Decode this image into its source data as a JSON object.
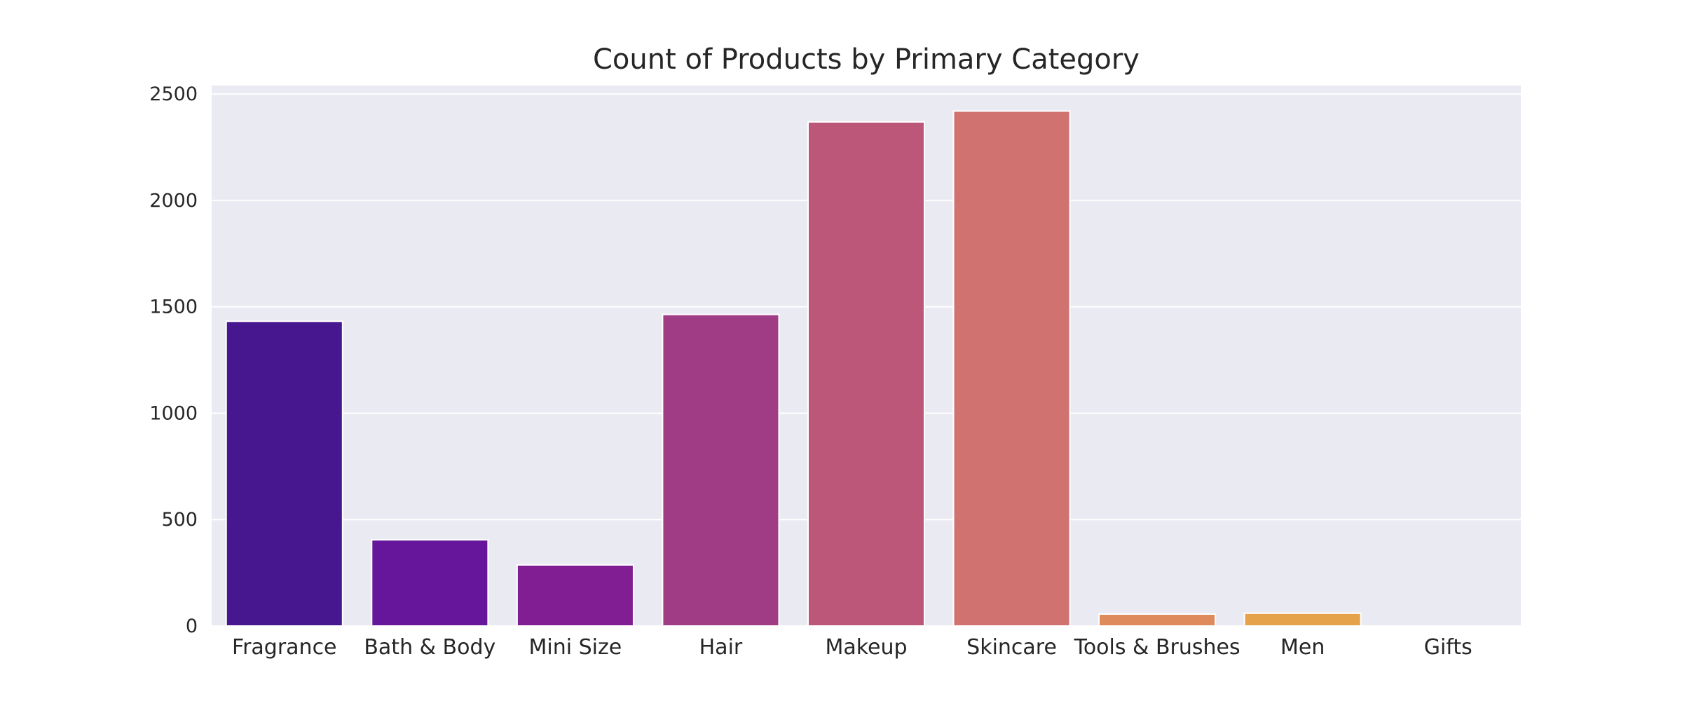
{
  "chart_data": {
    "type": "bar",
    "title": "Count of Products by Primary Category",
    "xlabel": "",
    "ylabel": "",
    "categories": [
      "Fragrance",
      "Bath & Body",
      "Mini Size",
      "Hair",
      "Makeup",
      "Skincare",
      "Tools & Brushes",
      "Men",
      "Gifts"
    ],
    "values": [
      1432,
      405,
      287,
      1464,
      2369,
      2420,
      56,
      60,
      0
    ],
    "colors": [
      "#46178f",
      "#65169a",
      "#811e93",
      "#a03b85",
      "#bc577a",
      "#d07270",
      "#de8a5a",
      "#e5a24a",
      "#e9b940"
    ],
    "ylim": [
      0,
      2540
    ],
    "yticks": [
      0,
      500,
      1000,
      1500,
      2000,
      2500
    ],
    "grid": true,
    "background": "#eaeaf2",
    "legend": "none"
  }
}
